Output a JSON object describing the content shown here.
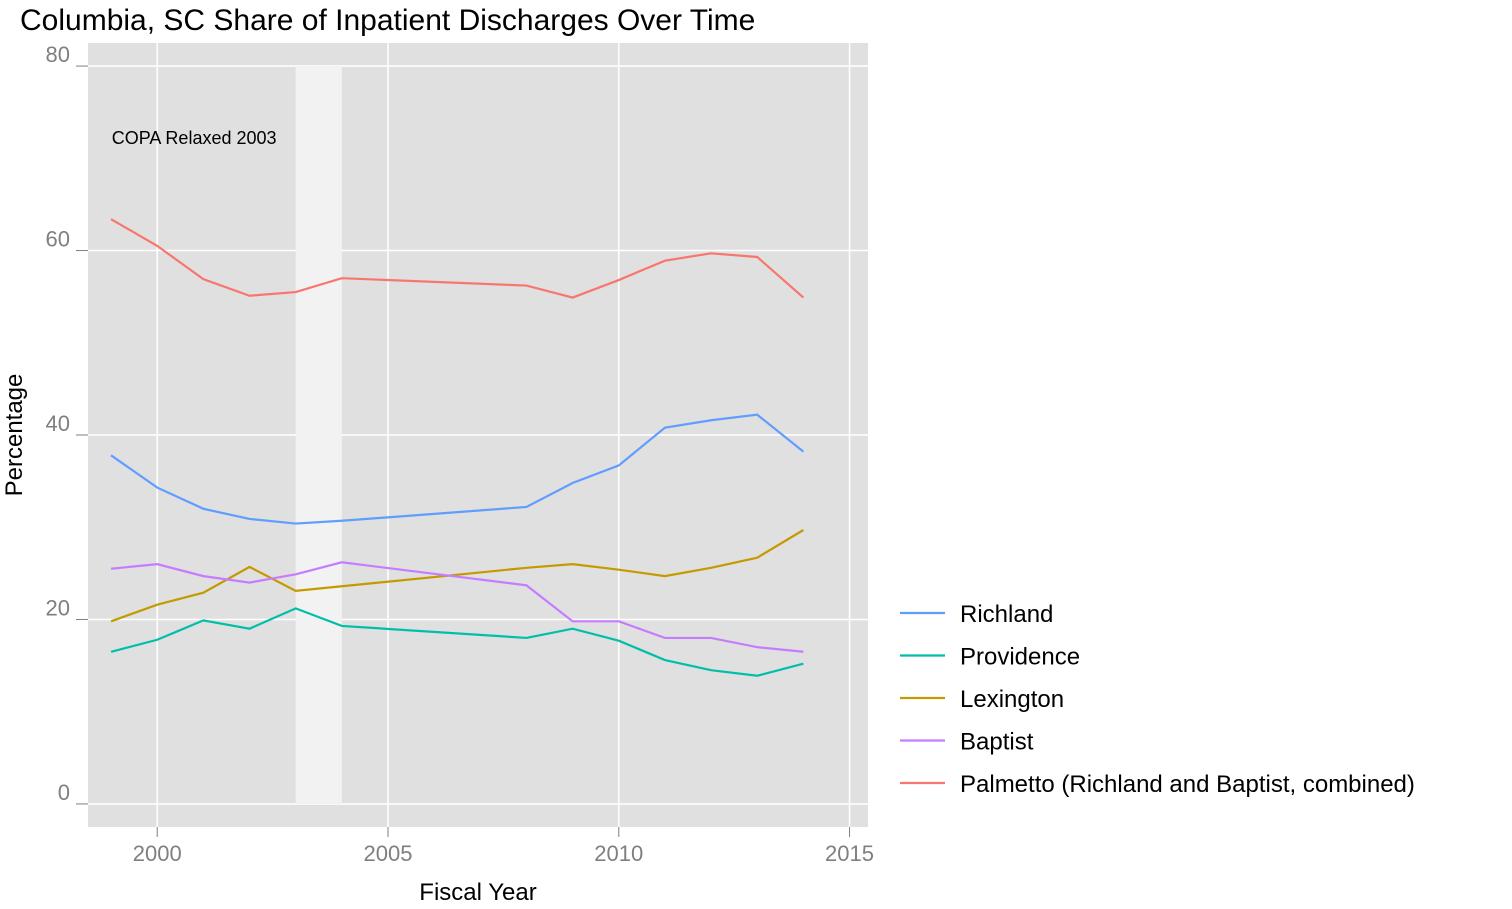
{
  "chart_data": {
    "type": "line",
    "title": "Columbia, SC Share of Inpatient Discharges Over Time",
    "x_label": "Fiscal Year",
    "y_label": "Percentage",
    "x": [
      1999,
      2000,
      2001,
      2002,
      2003,
      2004,
      2008,
      2009,
      2010,
      2011,
      2012,
      2013,
      2014
    ],
    "series": [
      {
        "name": "Richland",
        "color": "#619cff",
        "values": [
          37.8,
          34.3,
          32.0,
          30.9,
          30.4,
          30.7,
          32.2,
          34.8,
          36.7,
          40.8,
          41.6,
          42.2,
          38.2
        ]
      },
      {
        "name": "Providence",
        "color": "#00bfa8",
        "values": [
          16.5,
          17.8,
          19.9,
          19.0,
          21.2,
          19.3,
          18.0,
          19.0,
          17.7,
          15.6,
          14.5,
          13.9,
          15.2
        ]
      },
      {
        "name": "Lexington",
        "color": "#c49a00",
        "values": [
          19.8,
          21.6,
          22.9,
          25.7,
          23.1,
          23.6,
          25.6,
          26.0,
          25.4,
          24.7,
          25.6,
          26.7,
          29.7
        ]
      },
      {
        "name": "Baptist",
        "color": "#c77cff",
        "values": [
          25.5,
          26.0,
          24.7,
          24.0,
          24.9,
          26.2,
          23.7,
          19.8,
          19.8,
          18.0,
          18.0,
          17.0,
          16.5
        ]
      },
      {
        "name": "Palmetto (Richland and Baptist, combined)",
        "color": "#f8766d",
        "values": [
          63.4,
          60.5,
          56.9,
          55.1,
          55.5,
          57.0,
          56.2,
          54.9,
          56.8,
          58.9,
          59.7,
          59.3,
          54.9
        ]
      }
    ],
    "shaded_region": {
      "x": [
        2003,
        2004
      ],
      "y": [
        0,
        80
      ]
    },
    "annotation": {
      "text": "COPA Relaxed 2003",
      "x": 2000.8,
      "y": 72.2
    },
    "xlim": [
      1998.5,
      2015.4
    ],
    "ylim": [
      -2.5,
      82.5
    ],
    "xticks": [
      2000,
      2005,
      2010,
      2015
    ],
    "yticks": [
      0,
      20,
      40,
      60,
      80
    ],
    "grid": true
  }
}
